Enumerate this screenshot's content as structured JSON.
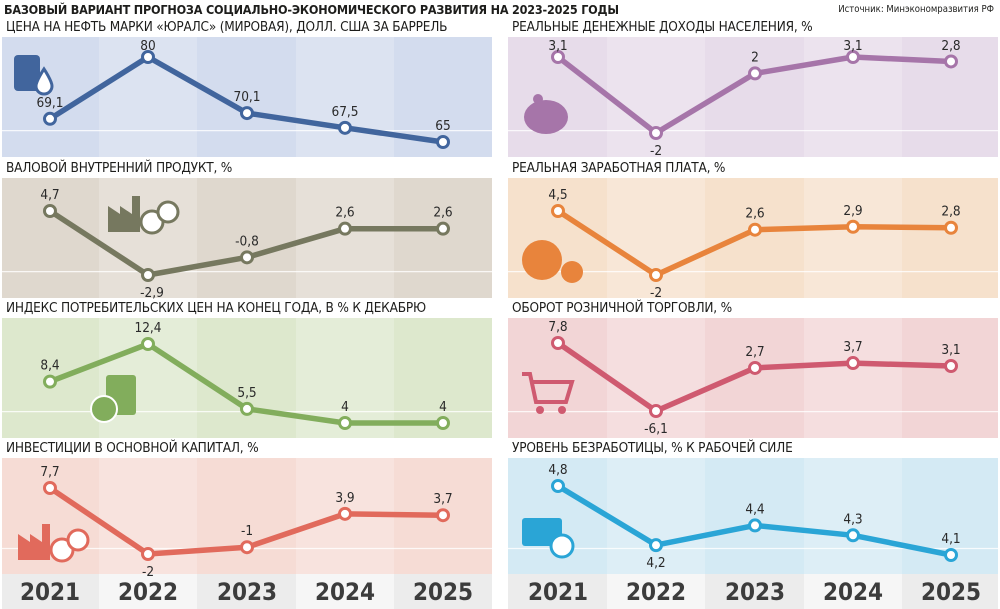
{
  "header": {
    "title": "БАЗОВЫЙ ВАРИАНТ ПРОГНОЗА СОЦИАЛЬНО-ЭКОНОМИЧЕСКОГО РАЗВИТИЯ НА 2023-2025 ГОДЫ",
    "source": "Источник: Минэкономразвития РФ"
  },
  "colors": {
    "oil": "#41659d",
    "oil_bg": "#d3dcee",
    "income": "#a675a9",
    "income_bg": "#e7dcea",
    "gdp": "#76785f",
    "gdp_bg": "#dfd8ce",
    "wage": "#e8843c",
    "wage_bg": "#f6e1cc",
    "cpi": "#82ad5c",
    "cpi_bg": "#dde8cd",
    "retail": "#cf5a70",
    "retail_bg": "#f2d5d6",
    "invest": "#e16a5c",
    "invest_bg": "#f6dcd5",
    "unemp": "#2aa5d6",
    "unemp_bg": "#d4eaf4"
  },
  "chart_data": [
    {
      "type": "line",
      "title": "ЦЕНА НА НЕФТЬ МАРКИ «ЮРАЛС» (МИРОВАЯ), ДОЛЛ. США ЗА БАРРЕЛЬ",
      "icon": "oil-barrel-icon",
      "x": [
        "2021",
        "2022",
        "2023",
        "2024",
        "2025"
      ],
      "values": [
        69.1,
        80,
        70.1,
        67.5,
        65
      ],
      "labels": [
        "69,1",
        "80",
        "70,1",
        "67,5",
        "65"
      ]
    },
    {
      "type": "line",
      "title": "РЕАЛЬНЫЕ ДЕНЕЖНЫЕ ДОХОДЫ НАСЕЛЕНИЯ, %",
      "icon": "piggy-bank-icon",
      "x": [
        "2021",
        "2022",
        "2023",
        "2024",
        "2025"
      ],
      "values": [
        3.1,
        -2,
        2,
        3.1,
        2.8
      ],
      "labels": [
        "3,1",
        "-2",
        "2",
        "3,1",
        "2,8"
      ]
    },
    {
      "type": "line",
      "title": "ВАЛОВОЙ ВНУТРЕННИЙ ПРОДУКТ, %",
      "icon": "factory-icon",
      "x": [
        "2021",
        "2022",
        "2023",
        "2024",
        "2025"
      ],
      "values": [
        4.7,
        -2.9,
        -0.8,
        2.6,
        2.6
      ],
      "labels": [
        "4,7",
        "-2,9",
        "-0,8",
        "2,6",
        "2,6"
      ]
    },
    {
      "type": "line",
      "title": "РЕАЛЬНАЯ ЗАРАБОТНАЯ ПЛАТА, %",
      "icon": "ruble-coin-icon",
      "x": [
        "2021",
        "2022",
        "2023",
        "2024",
        "2025"
      ],
      "values": [
        4.5,
        -2,
        2.6,
        2.9,
        2.8
      ],
      "labels": [
        "4,5",
        "-2",
        "2,6",
        "2,9",
        "2,8"
      ]
    },
    {
      "type": "line",
      "title": "ИНДЕКС ПОТРЕБИТЕЛЬСКИХ ЦЕН НА КОНЕЦ ГОДА, В % К ДЕКАБРЮ",
      "icon": "calculator-icon",
      "x": [
        "2021",
        "2022",
        "2023",
        "2024",
        "2025"
      ],
      "values": [
        8.4,
        12.4,
        5.5,
        4,
        4
      ],
      "labels": [
        "8,4",
        "12,4",
        "5,5",
        "4",
        "4"
      ]
    },
    {
      "type": "line",
      "title": "ОБОРОТ РОЗНИЧНОЙ ТОРГОВЛИ, %",
      "icon": "shopping-cart-icon",
      "x": [
        "2021",
        "2022",
        "2023",
        "2024",
        "2025"
      ],
      "values": [
        7.8,
        -6.1,
        2.7,
        3.7,
        3.1
      ],
      "labels": [
        "7,8",
        "-6,1",
        "2,7",
        "3,7",
        "3,1"
      ]
    },
    {
      "type": "line",
      "title": "ИНВЕСТИЦИИ В ОСНОВНОЙ КАПИТАЛ, %",
      "icon": "factory-percent-icon",
      "x": [
        "2021",
        "2022",
        "2023",
        "2024",
        "2025"
      ],
      "values": [
        7.7,
        -2,
        -1,
        3.9,
        3.7
      ],
      "labels": [
        "7,7",
        "-2",
        "-1",
        "3,9",
        "3,7"
      ]
    },
    {
      "type": "line",
      "title": "УРОВЕНЬ БЕЗРАБОТИЦЫ, % К РАБОЧЕЙ СИЛЕ",
      "icon": "briefcase-x-icon",
      "x": [
        "2021",
        "2022",
        "2023",
        "2024",
        "2025"
      ],
      "values": [
        4.8,
        4.2,
        4.4,
        4.3,
        4.1
      ],
      "labels": [
        "4,8",
        "4,2",
        "4,4",
        "4,3",
        "4,1"
      ]
    }
  ]
}
